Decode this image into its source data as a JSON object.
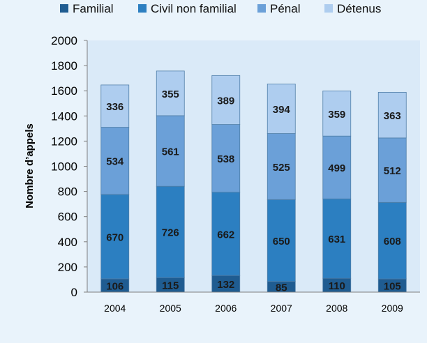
{
  "chart_data": {
    "type": "bar",
    "stacked": true,
    "title": "",
    "xlabel": "",
    "ylabel": "Nombre d’appels",
    "ylim": [
      0,
      2000
    ],
    "yticks": [
      0,
      200,
      400,
      600,
      800,
      1000,
      1200,
      1400,
      1600,
      1800,
      2000
    ],
    "categories": [
      "2004",
      "2005",
      "2006",
      "2007",
      "2008",
      "2009"
    ],
    "series": [
      {
        "name": "Familial",
        "color": "#1f5c91",
        "values": [
          106,
          115,
          132,
          85,
          110,
          105
        ]
      },
      {
        "name": "Civil non familial",
        "color": "#2c7fc1",
        "values": [
          670,
          726,
          662,
          650,
          631,
          608
        ]
      },
      {
        "name": "Pénal",
        "color": "#6ba0d8",
        "values": [
          534,
          561,
          538,
          525,
          499,
          512
        ]
      },
      {
        "name": "Détenus",
        "color": "#aecdef",
        "values": [
          336,
          355,
          389,
          394,
          359,
          363
        ]
      }
    ],
    "legend_position": "top",
    "grid": false
  }
}
